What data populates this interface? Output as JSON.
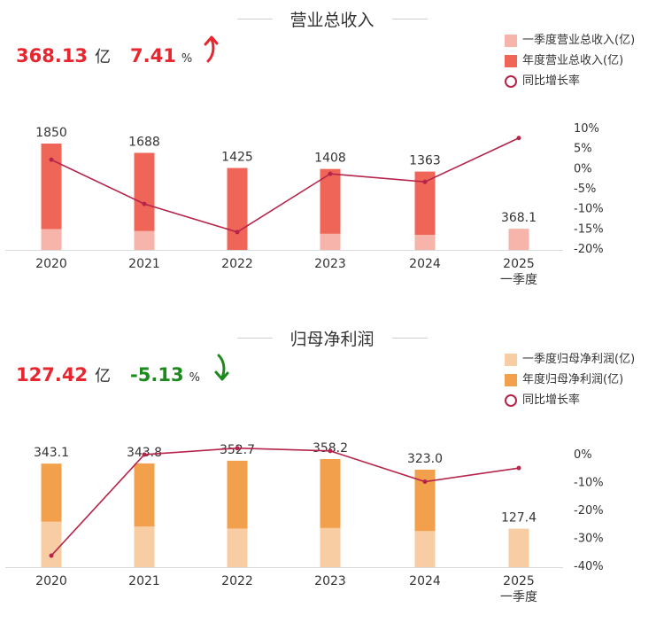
{
  "colors": {
    "rev_q1": "#f7b4aa",
    "rev_year": "#ef6558",
    "profit_q1": "#f8cda3",
    "profit_year": "#f3a04d",
    "yoy_line": "#b5254a",
    "kpi_red": "#e8262f",
    "kpi_green": "#1d8a1d"
  },
  "revenue": {
    "title": "营业总收入",
    "kpi_value": "368.13",
    "kpi_unit": "亿",
    "kpi_change": "7.41",
    "kpi_pct": "%",
    "kpi_arrow": "up-arrow-icon",
    "legend": {
      "q1": "一季度营业总收入(亿)",
      "year": "年度营业总收入(亿)",
      "yoy": "同比增长率"
    }
  },
  "profit": {
    "title": "归母净利润",
    "kpi_value": "127.42",
    "kpi_unit": "亿",
    "kpi_change": "-5.13",
    "kpi_pct": "%",
    "kpi_arrow": "down-arrow-icon",
    "legend": {
      "q1": "一季度归母净利润(亿)",
      "year": "年度归母净利润(亿)",
      "yoy": "同比增长率"
    }
  },
  "chart_data": [
    {
      "type": "bar",
      "categories": [
        "2020",
        "2021",
        "2022",
        "2023",
        "2024",
        "2025\n一季度"
      ],
      "series": [
        {
          "name": "一季度营业总收入(亿)",
          "values": [
            363,
            330,
            0,
            282,
            263,
            368.1
          ]
        },
        {
          "name": "年度营业总收入(亿)",
          "values": [
            1850,
            1688,
            1425,
            1408,
            1363,
            null
          ]
        },
        {
          "name": "同比增长率",
          "type": "line",
          "values": [
            2,
            -9,
            -16,
            -1.5,
            -3.5,
            7.41
          ]
        }
      ],
      "data_labels": [
        "1850",
        "1688",
        "1425",
        "1408",
        "1363",
        "368.1"
      ],
      "y_right_ticks": [
        "10%",
        "5%",
        "0%",
        "-5%",
        "-10%",
        "-15%",
        "-20%"
      ],
      "y_right_range": [
        -20,
        10
      ],
      "grid": false
    },
    {
      "type": "bar",
      "categories": [
        "2020",
        "2021",
        "2022",
        "2023",
        "2024",
        "2025\n一季度"
      ],
      "series": [
        {
          "name": "一季度归母净利润(亿)",
          "values": [
            151,
            135,
            128,
            130,
            120,
            127.4
          ]
        },
        {
          "name": "年度归母净利润(亿)",
          "values": [
            343.1,
            343.8,
            352.7,
            358.2,
            323.0,
            null
          ]
        },
        {
          "name": "同比增长率",
          "type": "line",
          "values": [
            -36.5,
            -0.3,
            2,
            1,
            -10,
            -5.13
          ]
        }
      ],
      "data_labels": [
        "343.1",
        "343.8",
        "352.7",
        "358.2",
        "323.0",
        "127.4"
      ],
      "y_right_ticks": [
        "0%",
        "-10%",
        "-20%",
        "-30%",
        "-40%"
      ],
      "y_right_range": [
        -40,
        0
      ],
      "grid": false
    }
  ]
}
